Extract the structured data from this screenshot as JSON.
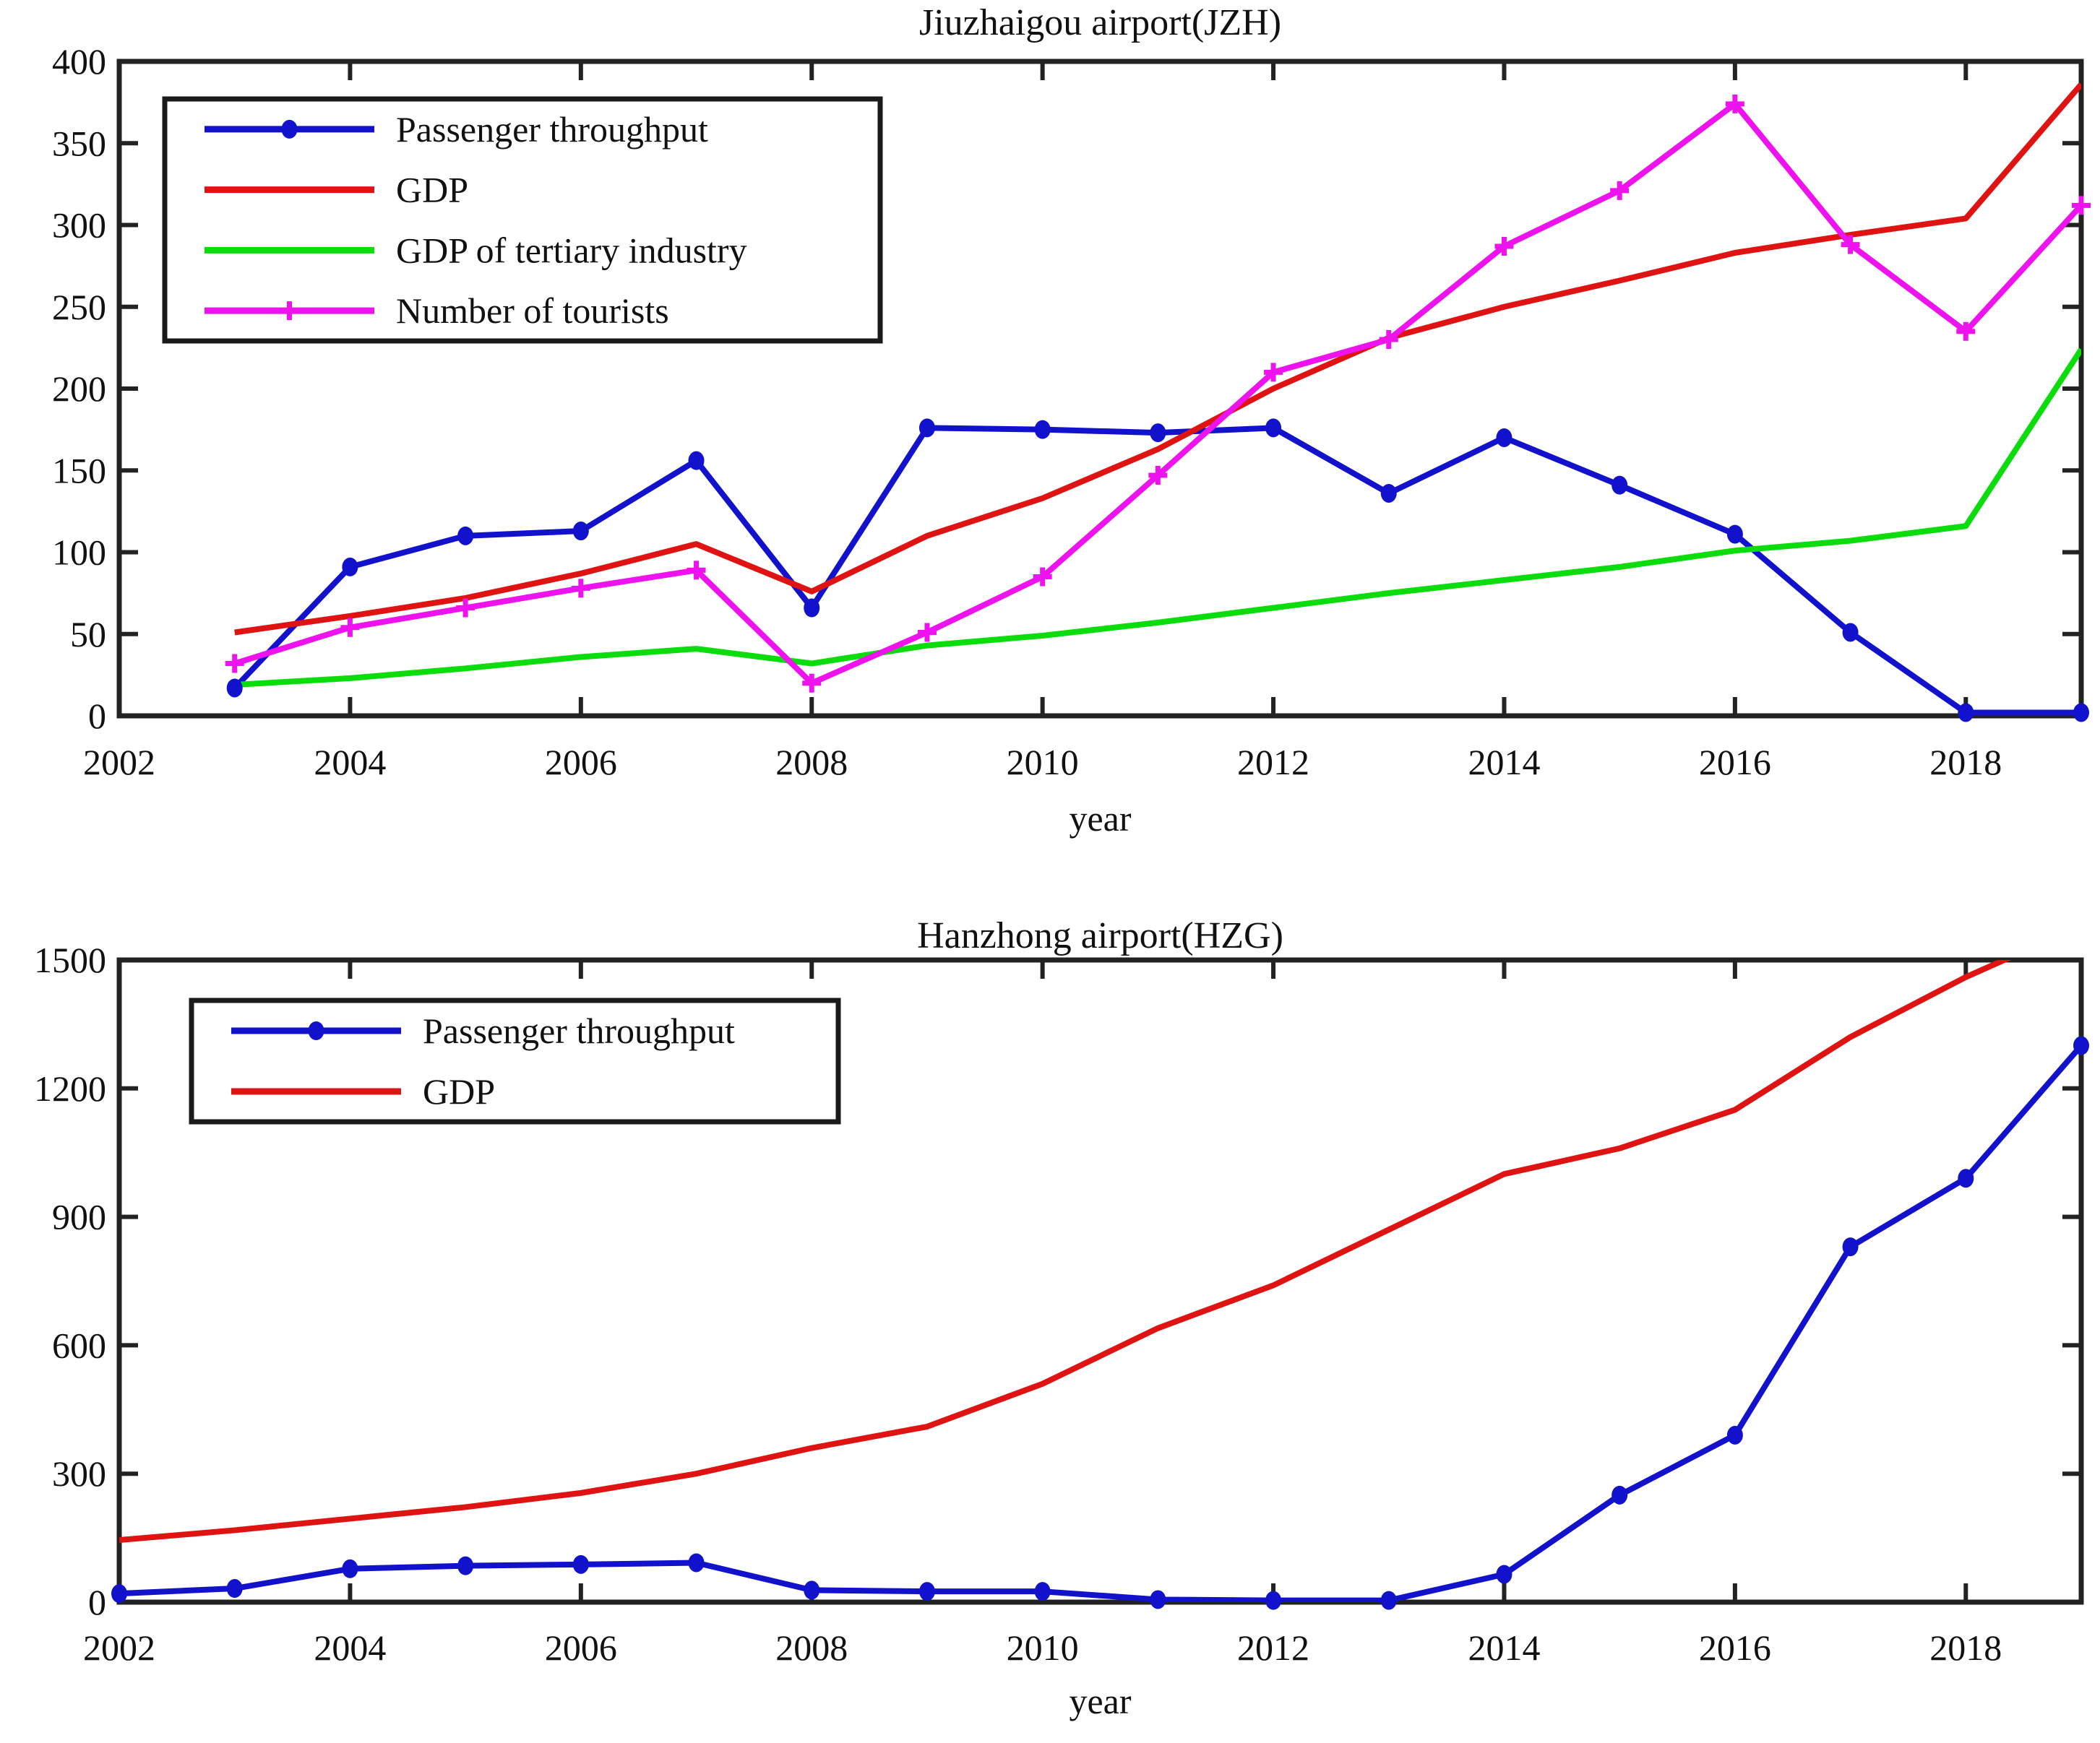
{
  "figure": {
    "background": "#ffffff",
    "text_color": "#111111",
    "axis_color": "#222222"
  },
  "chart_data": [
    {
      "type": "line",
      "title": "Jiuzhaigou airport(JZH)",
      "xlabel": "year",
      "ylabel": "",
      "xlim": [
        2002,
        2019
      ],
      "ylim": [
        0,
        400
      ],
      "x_ticks": [
        2002,
        2004,
        2006,
        2008,
        2010,
        2012,
        2014,
        2016,
        2018
      ],
      "y_ticks": [
        0,
        50,
        100,
        150,
        200,
        250,
        300,
        350,
        400
      ],
      "grid": false,
      "legend_position": "top-left",
      "x": [
        2003,
        2004,
        2005,
        2006,
        2007,
        2008,
        2009,
        2010,
        2011,
        2012,
        2013,
        2014,
        2015,
        2016,
        2017,
        2018,
        2019
      ],
      "series": [
        {
          "name": "Passenger throughput",
          "color": "#1212CD",
          "marker": "dot",
          "values": [
            17,
            91,
            110,
            113,
            156,
            66,
            176,
            175,
            173,
            176,
            136,
            170,
            141,
            111,
            51,
            2,
            2
          ]
        },
        {
          "name": "GDP",
          "color": "#E01313",
          "marker": "none",
          "values": [
            51,
            61,
            72,
            87,
            105,
            76,
            110,
            133,
            163,
            200,
            231,
            250,
            266,
            283,
            294,
            304,
            386
          ]
        },
        {
          "name": "GDP of tertiary industry",
          "color": "#0BDC0B",
          "marker": "none",
          "values": [
            19,
            23,
            29,
            36,
            41,
            32,
            43,
            49,
            57,
            66,
            75,
            83,
            91,
            101,
            107,
            116,
            224
          ]
        },
        {
          "name": "Number of tourists",
          "color": "#EE12EE",
          "marker": "plus",
          "values": [
            32,
            54,
            66,
            78,
            89,
            20,
            51,
            85,
            147,
            210,
            230,
            287,
            321,
            374,
            288,
            235,
            312
          ]
        }
      ]
    },
    {
      "type": "line",
      "title": "Hanzhong airport(HZG)",
      "xlabel": "year",
      "ylabel": "",
      "xlim": [
        2002,
        2019
      ],
      "ylim": [
        0,
        1500
      ],
      "x_ticks": [
        2002,
        2004,
        2006,
        2008,
        2010,
        2012,
        2014,
        2016,
        2018
      ],
      "y_ticks": [
        0,
        300,
        600,
        900,
        1200,
        1500
      ],
      "grid": false,
      "legend_position": "top-left",
      "x": [
        2002,
        2003,
        2004,
        2005,
        2006,
        2007,
        2008,
        2009,
        2010,
        2011,
        2012,
        2013,
        2014,
        2015,
        2016,
        2017,
        2018,
        2019
      ],
      "series": [
        {
          "name": "Passenger throughput",
          "color": "#1212CD",
          "marker": "dot",
          "values": [
            20,
            32,
            78,
            85,
            88,
            92,
            28,
            25,
            25,
            6,
            4,
            4,
            65,
            250,
            390,
            830,
            990,
            1300
          ]
        },
        {
          "name": "GDP",
          "color": "#E01313",
          "marker": "none",
          "values": [
            145,
            168,
            195,
            222,
            255,
            300,
            360,
            410,
            510,
            640,
            740,
            870,
            1000,
            1060,
            1150,
            1320,
            1460,
            1580
          ]
        }
      ]
    }
  ]
}
